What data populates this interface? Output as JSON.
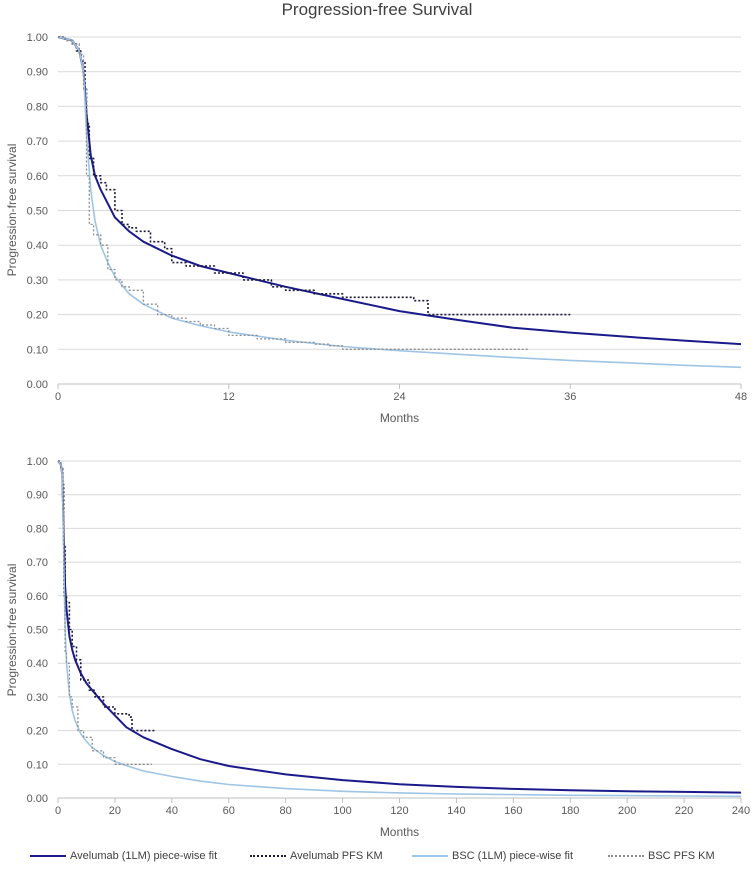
{
  "title": "Progression-free Survival",
  "colors": {
    "avelumab_fit": "#1a1a8c",
    "avelumab_km": "#1a1a3a",
    "bsc_fit": "#9ec5e6",
    "bsc_km": "#8c8c8c"
  },
  "legend": [
    {
      "name": "Avelumab (1LM) piece-wise fit",
      "style": "solid",
      "color": "#1a1a8c"
    },
    {
      "name": "Avelumab PFS KM",
      "style": "dotted",
      "color": "#1a1a3a"
    },
    {
      "name": "BSC (1LM) piece-wise fit",
      "style": "solid",
      "color": "#9ec5e6"
    },
    {
      "name": "BSC PFS KM",
      "style": "dotted",
      "color": "#8c8c8c"
    }
  ],
  "chart_data": [
    {
      "type": "line",
      "xlabel": "Months",
      "ylabel": "Progression-free survival",
      "xlim": [
        0,
        48
      ],
      "ylim": [
        0,
        1
      ],
      "xticks": [
        0,
        12,
        24,
        36,
        48
      ],
      "yticks": [
        "0.00",
        "0.10",
        "0.20",
        "0.30",
        "0.40",
        "0.50",
        "0.60",
        "0.70",
        "0.80",
        "0.90",
        "1.00"
      ],
      "grid": "horizontal",
      "series": [
        {
          "name": "Avelumab (1LM) piece-wise fit",
          "style": "solid",
          "x": [
            0,
            1,
            1.5,
            1.8,
            2,
            2.3,
            2.6,
            3,
            3.5,
            4,
            5,
            6,
            8,
            10,
            12,
            16,
            20,
            24,
            28,
            32,
            36,
            40,
            44,
            48
          ],
          "y": [
            1,
            0.99,
            0.96,
            0.9,
            0.78,
            0.66,
            0.6,
            0.56,
            0.52,
            0.48,
            0.44,
            0.41,
            0.37,
            0.34,
            0.32,
            0.28,
            0.245,
            0.21,
            0.185,
            0.162,
            0.148,
            0.136,
            0.125,
            0.115
          ]
        },
        {
          "name": "Avelumab PFS KM",
          "style": "dotted",
          "x": [
            0,
            0.5,
            1,
            1.3,
            1.6,
            1.9,
            2,
            2.2,
            2.5,
            3,
            3.4,
            4,
            4.5,
            5,
            5.5,
            6.5,
            7.5,
            8,
            9,
            11,
            13,
            15,
            16,
            18,
            20,
            22,
            24,
            25,
            26,
            30,
            34,
            36
          ],
          "y": [
            1,
            0.99,
            0.98,
            0.96,
            0.93,
            0.85,
            0.75,
            0.65,
            0.6,
            0.58,
            0.56,
            0.5,
            0.46,
            0.45,
            0.44,
            0.41,
            0.39,
            0.35,
            0.34,
            0.32,
            0.3,
            0.28,
            0.27,
            0.26,
            0.25,
            0.25,
            0.25,
            0.24,
            0.2,
            0.2,
            0.2,
            0.2
          ]
        },
        {
          "name": "BSC (1LM) piece-wise fit",
          "style": "solid",
          "x": [
            0,
            1,
            1.5,
            1.8,
            2,
            2.3,
            2.6,
            3,
            3.5,
            4,
            5,
            6,
            8,
            10,
            12,
            16,
            20,
            24,
            28,
            32,
            36,
            40,
            44,
            48
          ],
          "y": [
            1,
            0.99,
            0.96,
            0.9,
            0.72,
            0.56,
            0.47,
            0.4,
            0.35,
            0.31,
            0.26,
            0.23,
            0.19,
            0.168,
            0.15,
            0.126,
            0.108,
            0.096,
            0.086,
            0.076,
            0.068,
            0.061,
            0.054,
            0.048
          ]
        },
        {
          "name": "BSC PFS KM",
          "style": "dotted",
          "x": [
            0,
            0.5,
            1,
            1.5,
            1.8,
            2,
            2.2,
            2.5,
            3,
            3.5,
            4,
            4.5,
            5,
            6,
            7,
            8,
            9,
            10,
            11,
            12,
            14,
            16,
            18,
            19,
            20,
            22,
            24,
            28,
            30,
            33
          ],
          "y": [
            1,
            0.99,
            0.98,
            0.95,
            0.85,
            0.6,
            0.46,
            0.43,
            0.4,
            0.33,
            0.3,
            0.28,
            0.27,
            0.23,
            0.2,
            0.19,
            0.18,
            0.17,
            0.16,
            0.14,
            0.13,
            0.12,
            0.115,
            0.11,
            0.1,
            0.1,
            0.1,
            0.1,
            0.1,
            0.1
          ]
        }
      ]
    },
    {
      "type": "line",
      "xlabel": "Months",
      "ylabel": "Progression-free survival",
      "xlim": [
        0,
        240
      ],
      "ylim": [
        0,
        1
      ],
      "xticks": [
        0,
        20,
        40,
        60,
        80,
        100,
        120,
        140,
        160,
        180,
        200,
        220,
        240
      ],
      "yticks": [
        "0.00",
        "0.10",
        "0.20",
        "0.30",
        "0.40",
        "0.50",
        "0.60",
        "0.70",
        "0.80",
        "0.90",
        "1.00"
      ],
      "grid": "horizontal",
      "series": [
        {
          "name": "Avelumab (1LM) piece-wise fit",
          "style": "solid",
          "x": [
            0,
            1,
            1.5,
            2,
            2.5,
            3,
            4,
            5,
            6,
            8,
            10,
            12,
            16,
            20,
            24,
            30,
            40,
            50,
            60,
            80,
            100,
            120,
            140,
            160,
            180,
            200,
            220,
            240
          ],
          "y": [
            1,
            0.99,
            0.96,
            0.78,
            0.63,
            0.56,
            0.48,
            0.44,
            0.41,
            0.37,
            0.34,
            0.32,
            0.28,
            0.245,
            0.21,
            0.18,
            0.145,
            0.115,
            0.095,
            0.07,
            0.053,
            0.041,
            0.033,
            0.027,
            0.023,
            0.02,
            0.018,
            0.016
          ]
        },
        {
          "name": "Avelumab PFS KM",
          "style": "dotted",
          "x": [
            0,
            1,
            1.6,
            2,
            2.5,
            3,
            4,
            5,
            6.5,
            8,
            11,
            13,
            16,
            20,
            24,
            25,
            26,
            30,
            34
          ],
          "y": [
            1,
            0.98,
            0.93,
            0.75,
            0.6,
            0.58,
            0.5,
            0.45,
            0.41,
            0.35,
            0.32,
            0.3,
            0.27,
            0.25,
            0.25,
            0.24,
            0.2,
            0.2,
            0.2
          ]
        },
        {
          "name": "BSC (1LM) piece-wise fit",
          "style": "solid",
          "x": [
            0,
            1,
            1.5,
            2,
            2.5,
            3,
            4,
            5,
            6,
            8,
            10,
            12,
            16,
            20,
            24,
            30,
            40,
            50,
            60,
            80,
            100,
            120,
            140,
            160,
            180,
            200,
            220,
            240
          ],
          "y": [
            1,
            0.99,
            0.96,
            0.72,
            0.5,
            0.4,
            0.31,
            0.26,
            0.23,
            0.19,
            0.168,
            0.15,
            0.126,
            0.108,
            0.096,
            0.08,
            0.064,
            0.05,
            0.04,
            0.028,
            0.02,
            0.015,
            0.012,
            0.01,
            0.008,
            0.007,
            0.006,
            0.005
          ]
        },
        {
          "name": "BSC PFS KM",
          "style": "dotted",
          "x": [
            0,
            1,
            1.8,
            2,
            2.5,
            3,
            4,
            5,
            7,
            9,
            12,
            16,
            20,
            24,
            28,
            33
          ],
          "y": [
            1,
            0.98,
            0.85,
            0.6,
            0.43,
            0.4,
            0.3,
            0.27,
            0.2,
            0.18,
            0.14,
            0.12,
            0.1,
            0.1,
            0.1,
            0.1
          ]
        }
      ]
    }
  ]
}
